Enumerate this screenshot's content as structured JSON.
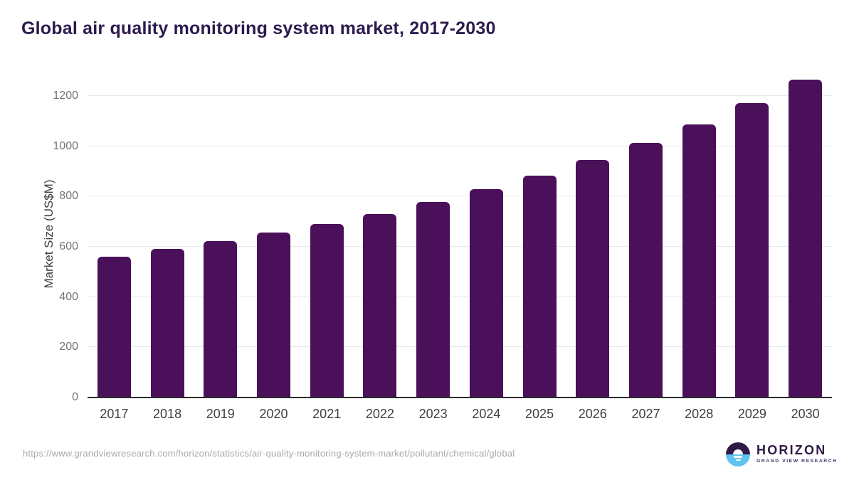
{
  "title": "Global air quality monitoring system market, 2017-2030",
  "chart_data": {
    "type": "bar",
    "categories": [
      "2017",
      "2018",
      "2019",
      "2020",
      "2021",
      "2022",
      "2023",
      "2024",
      "2025",
      "2026",
      "2027",
      "2028",
      "2029",
      "2030"
    ],
    "values": [
      560,
      591,
      624,
      656,
      692,
      731,
      778,
      829,
      882,
      945,
      1014,
      1087,
      1171,
      1265
    ],
    "title": "Global air quality monitoring system market, 2017-2030",
    "xlabel": "",
    "ylabel": "Market Size (US$M)",
    "ylim": [
      0,
      1300
    ],
    "yticks": [
      0,
      200,
      400,
      600,
      800,
      1000,
      1200
    ],
    "grid": true,
    "legend": "none",
    "bar_color": "#4a1059",
    "gridline_color": "#e7e7e7",
    "axis_color": "#2b2b2b"
  },
  "footer": {
    "source_url": "https://www.grandviewresearch.com/horizon/statistics/air-quality-monitoring-system-market/pollutant/chemical/global",
    "logo": {
      "name": "HORIZON",
      "subtitle": "GRAND VIEW RESEARCH",
      "purple": "#2e1a47",
      "blue": "#5fc3ef"
    }
  },
  "colors": {
    "title_text": "#2d1a4e",
    "bar": "#4a1059",
    "ytick_text": "#757575",
    "xtick_text": "#404040",
    "url_text": "#a8a8a8"
  }
}
